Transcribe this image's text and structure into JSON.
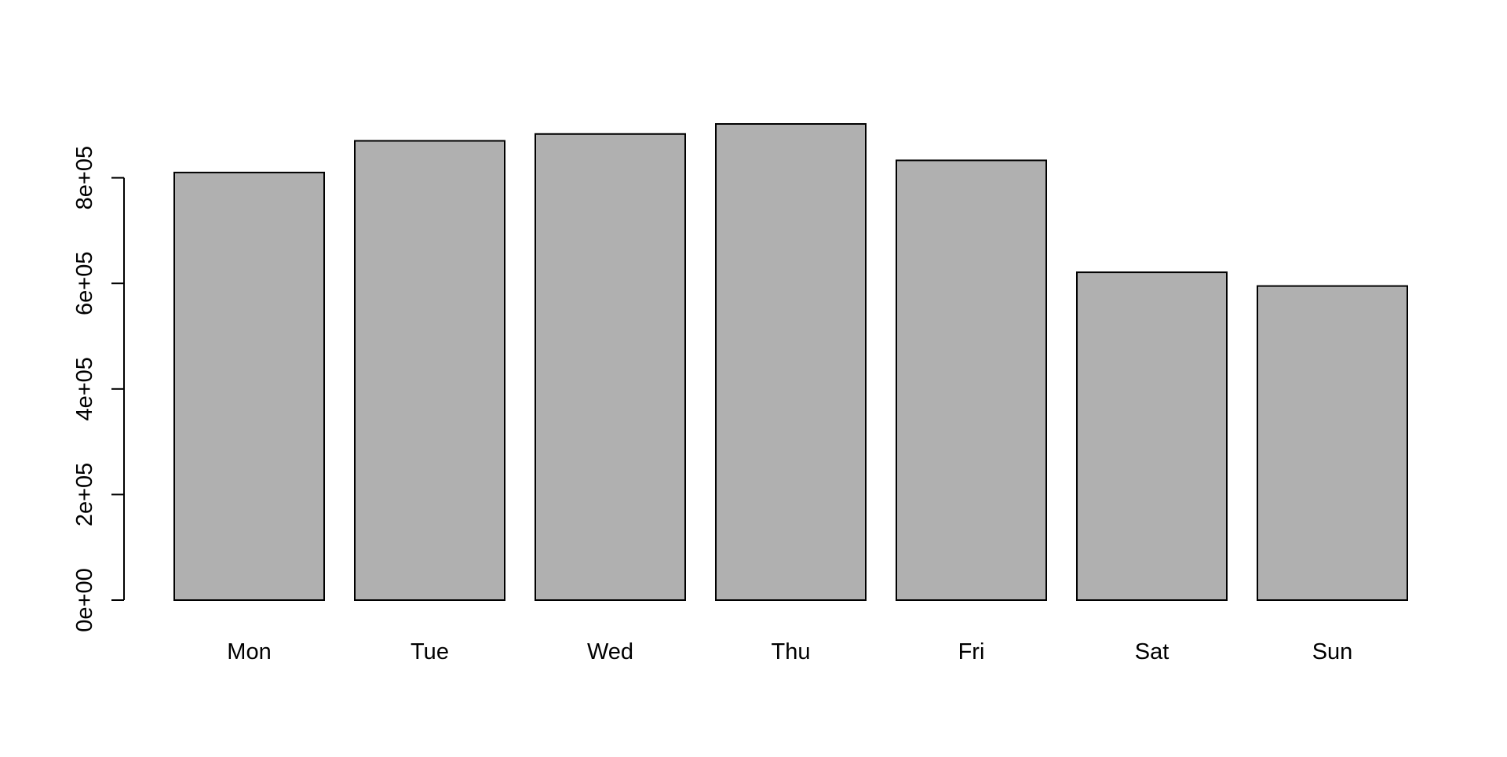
{
  "chart_data": {
    "type": "bar",
    "title": "",
    "xlabel": "",
    "ylabel": "",
    "categories": [
      "Mon",
      "Tue",
      "Wed",
      "Thu",
      "Fri",
      "Sat",
      "Sun"
    ],
    "values": [
      810000,
      870000,
      883000,
      902000,
      833000,
      621000,
      595000
    ],
    "ylim": [
      0,
      902000
    ],
    "y_ticks": [
      {
        "value": 0,
        "label": "0e+00"
      },
      {
        "value": 200000,
        "label": "2e+05"
      },
      {
        "value": 400000,
        "label": "4e+05"
      },
      {
        "value": 600000,
        "label": "6e+05"
      },
      {
        "value": 800000,
        "label": "8e+05"
      }
    ],
    "grid": false,
    "legend": "none",
    "colors": {
      "bar_fill": "#b0b0b0",
      "bar_stroke": "#000000",
      "axis": "#000000"
    }
  }
}
